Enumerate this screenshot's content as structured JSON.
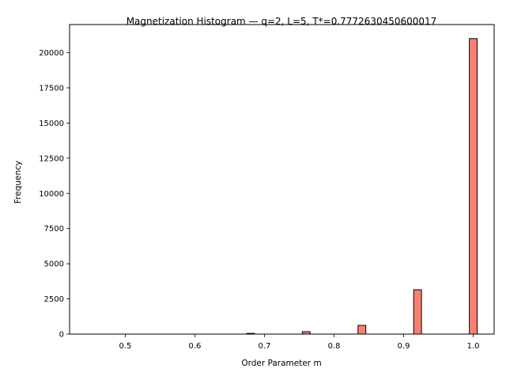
{
  "chart_data": {
    "type": "bar",
    "title": "Magnetization Histogram — q=2, L=5, T*=0.7772630450600017",
    "xlabel": "Order Parameter m",
    "ylabel": "Frequency",
    "xlim": [
      0.42,
      1.03
    ],
    "ylim": [
      0,
      22000
    ],
    "xticks": [
      0.5,
      0.6,
      0.7,
      0.8,
      0.9,
      1.0
    ],
    "xtick_labels": [
      "0.5",
      "0.6",
      "0.7",
      "0.8",
      "0.9",
      "1.0"
    ],
    "yticks": [
      0,
      2500,
      5000,
      7500,
      10000,
      12500,
      15000,
      17500,
      20000
    ],
    "ytick_labels": [
      "0",
      "2500",
      "5000",
      "7500",
      "10000",
      "12500",
      "15000",
      "17500",
      "20000"
    ],
    "bin_width": 0.0112,
    "bins": [
      {
        "x": 0.68,
        "value": 50
      },
      {
        "x": 0.76,
        "value": 170
      },
      {
        "x": 0.84,
        "value": 620
      },
      {
        "x": 0.92,
        "value": 3150
      },
      {
        "x": 1.0,
        "value": 21000
      }
    ],
    "bar_color": "#fa8072",
    "edge_color": "#000000",
    "grid": false,
    "legend": "none"
  }
}
